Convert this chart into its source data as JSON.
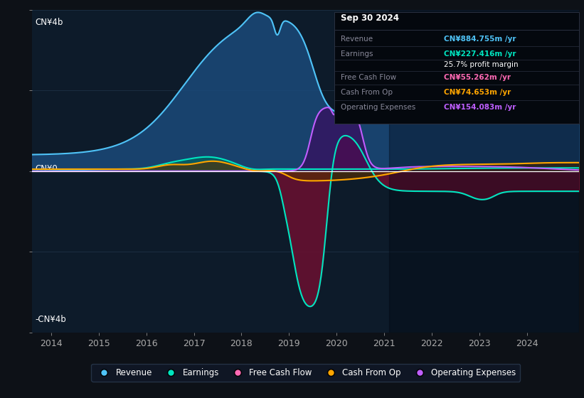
{
  "bg_color": "#0d1117",
  "plot_bg_color": "#0d1b2a",
  "grid_color": "#253a52",
  "title_date": "Sep 30 2024",
  "ylim": [
    -4000000000,
    4000000000
  ],
  "ylabel_top": "CN¥4b",
  "ylabel_bottom": "-CN¥4b",
  "ylabel_mid": "CN¥0",
  "xlabel_years": [
    "2014",
    "2015",
    "2016",
    "2017",
    "2018",
    "2019",
    "2020",
    "2021",
    "2022",
    "2023",
    "2024"
  ],
  "info_rows": [
    {
      "label": "Revenue",
      "value": "CN¥884.755m /yr",
      "color": "#4fc3f7"
    },
    {
      "label": "Earnings",
      "value": "CN¥227.416m /yr",
      "color": "#00e5c0"
    },
    {
      "label": "",
      "value": "25.7% profit margin",
      "color": "#ffffff"
    },
    {
      "label": "Free Cash Flow",
      "value": "CN¥55.262m /yr",
      "color": "#ff69b4"
    },
    {
      "label": "Cash From Op",
      "value": "CN¥74.653m /yr",
      "color": "#ffa500"
    },
    {
      "label": "Operating Expenses",
      "value": "CN¥154.083m /yr",
      "color": "#bf5fff"
    }
  ],
  "series": {
    "revenue": {
      "line": "#4fc3f7",
      "fill": "#1a4a7a",
      "alpha": 0.85
    },
    "earnings": {
      "line": "#00e5c0",
      "fill": "#00695c",
      "alpha": 0.6
    },
    "free_cash_flow": {
      "line": "#00e5c0",
      "fill": "#6b1030",
      "alpha": 0.85
    },
    "cash_from_op": {
      "line": "#ffa500",
      "fill": "#5a3000",
      "alpha": 0.6
    },
    "operating_expenses": {
      "line": "#bf5fff",
      "fill": "#3a0d60",
      "alpha": 0.7
    }
  },
  "legend": [
    {
      "label": "Revenue",
      "color": "#4fc3f7"
    },
    {
      "label": "Earnings",
      "color": "#00e5c0"
    },
    {
      "label": "Free Cash Flow",
      "color": "#ff69b4"
    },
    {
      "label": "Cash From Op",
      "color": "#ffa500"
    },
    {
      "label": "Operating Expenses",
      "color": "#bf5fff"
    }
  ]
}
